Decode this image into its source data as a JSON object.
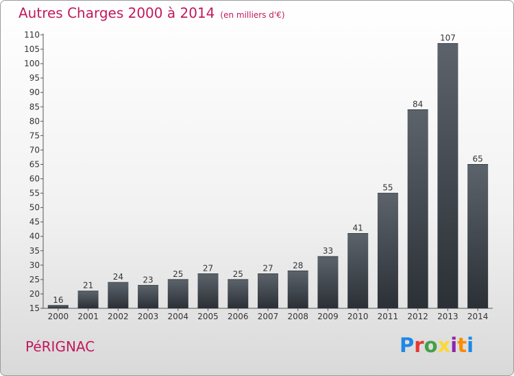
{
  "header": {
    "title": "Autres Charges 2000 à 2014",
    "unit": "(en milliers d'€)"
  },
  "footer": {
    "commune": "PéRIGNAC",
    "logo_letters": [
      "P",
      "r",
      "o",
      "x",
      "i",
      "t",
      "i"
    ],
    "logo_colors": [
      "#1e88e5",
      "#e53935",
      "#43a047",
      "#fdd835",
      "#8e24aa",
      "#fb8c00",
      "#1e88e5"
    ]
  },
  "colors": {
    "title": "#c2185b",
    "bar_top": "#5c636b",
    "bar_bottom": "#2b3036"
  },
  "chart_data": {
    "type": "bar",
    "title": "Autres Charges 2000 à 2014",
    "subtitle": "(en milliers d'€)",
    "categories": [
      "2000",
      "2001",
      "2002",
      "2003",
      "2004",
      "2005",
      "2006",
      "2007",
      "2008",
      "2009",
      "2010",
      "2011",
      "2012",
      "2013",
      "2014"
    ],
    "values": [
      16,
      21,
      24,
      23,
      25,
      27,
      25,
      27,
      28,
      33,
      41,
      55,
      84,
      107,
      65
    ],
    "ylim": [
      15,
      110
    ],
    "yticks": [
      15,
      20,
      25,
      30,
      35,
      40,
      45,
      50,
      55,
      60,
      65,
      70,
      75,
      80,
      85,
      90,
      95,
      100,
      105,
      110
    ],
    "grid": false,
    "data_labels": true
  }
}
